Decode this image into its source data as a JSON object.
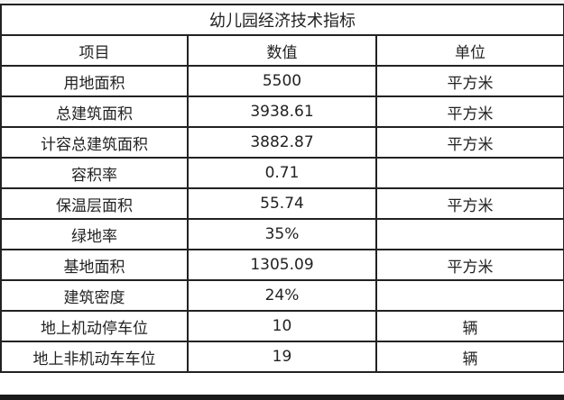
{
  "title": "幼儿园经济技术指标",
  "headers": [
    "项目",
    "数值",
    "单位"
  ],
  "rows": [
    [
      "用地面积",
      "5500",
      "平方米"
    ],
    [
      "总建筑面积",
      "3938.61",
      "平方米"
    ],
    [
      "计容总建筑面积",
      "3882.87",
      "平方米"
    ],
    [
      "容积率",
      "0.71",
      ""
    ],
    [
      "保温层面积",
      "55.74",
      "平方米"
    ],
    [
      "绿地率",
      "35%",
      ""
    ],
    [
      "基地面积",
      "1305.09",
      "平方米"
    ],
    [
      "建筑密度",
      "24%",
      ""
    ],
    [
      "地上机动停车位",
      "10",
      "辆"
    ],
    [
      "地上非机动车车位",
      "19",
      "辆"
    ]
  ]
}
